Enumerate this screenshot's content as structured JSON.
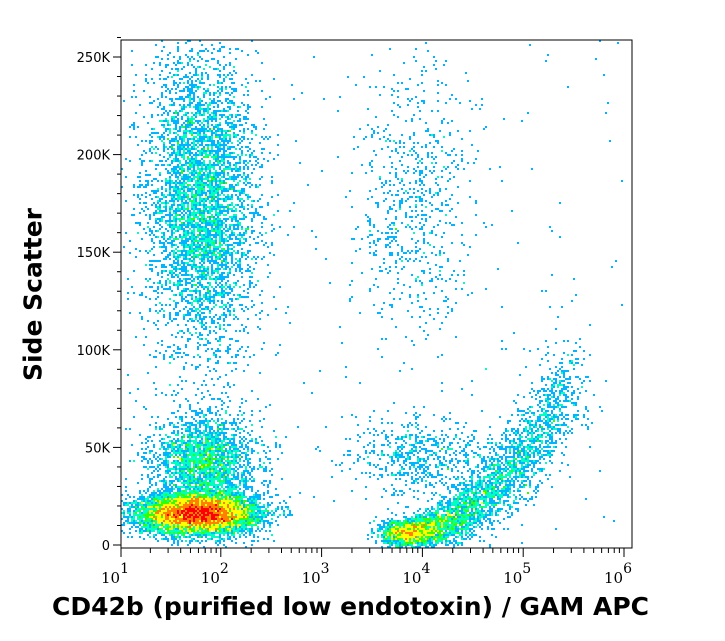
{
  "chart_data": {
    "type": "heatmap",
    "subtype": "flow-cytometry density dot plot",
    "xlabel": "CD42b (purified low endotoxin) / GAM APC",
    "ylabel": "Side Scatter",
    "x_scale": "log",
    "xlim": [
      10,
      1000000
    ],
    "ylim": [
      0,
      260000
    ],
    "x_ticks": [
      {
        "base": "10",
        "exp": "1",
        "value": 10
      },
      {
        "base": "10",
        "exp": "2",
        "value": 100
      },
      {
        "base": "10",
        "exp": "3",
        "value": 1000
      },
      {
        "base": "10",
        "exp": "4",
        "value": 10000
      },
      {
        "base": "10",
        "exp": "5",
        "value": 100000
      },
      {
        "base": "10",
        "exp": "6",
        "value": 1000000
      }
    ],
    "y_ticks": [
      {
        "label": "0",
        "value": 0
      },
      {
        "label": "50K",
        "value": 50000
      },
      {
        "label": "100K",
        "value": 100000
      },
      {
        "label": "150K",
        "value": 150000
      },
      {
        "label": "200K",
        "value": 200000
      },
      {
        "label": "250K",
        "value": 250000
      }
    ],
    "color_scale": [
      "#0000ff",
      "#00b4ff",
      "#00ffc0",
      "#30ff00",
      "#ffff00",
      "#ff8000",
      "#ff0000"
    ],
    "populations": [
      {
        "kind": "blob",
        "x_center": 60,
        "x_sd_decades": 0.28,
        "y_center": 16000,
        "y_sd": 5000,
        "events": 9000
      },
      {
        "kind": "blob",
        "x_center": 70,
        "x_sd_decades": 0.25,
        "y_center": 42000,
        "y_sd": 12000,
        "events": 2500
      },
      {
        "kind": "blob",
        "x_center": 65,
        "x_sd_decades": 0.27,
        "y_center": 175000,
        "y_sd": 38000,
        "events": 5000
      },
      {
        "kind": "curve",
        "x_start": 6000,
        "x_end": 300000,
        "y_start": 6000,
        "y_end": 85000,
        "events": 4500
      },
      {
        "kind": "blob",
        "x_center": 8000,
        "x_sd_decades": 0.3,
        "y_center": 175000,
        "y_sd": 35000,
        "events": 700
      },
      {
        "kind": "blob",
        "x_center": 10000,
        "x_sd_decades": 0.35,
        "y_center": 45000,
        "y_sd": 10000,
        "events": 600
      },
      {
        "kind": "uniform",
        "x_min": 10,
        "x_max": 1000000,
        "y_min": 0,
        "y_max": 260000,
        "events": 250
      }
    ]
  }
}
